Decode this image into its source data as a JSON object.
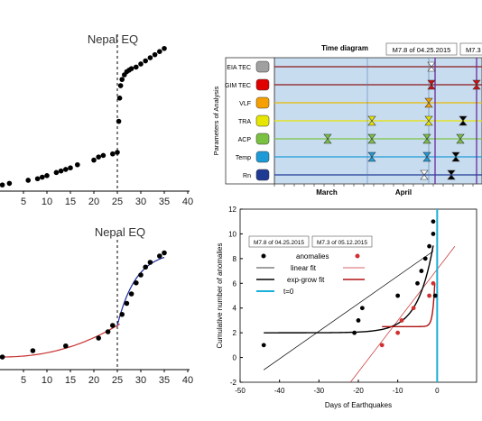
{
  "chart_data": [
    {
      "type": "scatter",
      "title": "Nepal EQ",
      "xlim": [
        0,
        40
      ],
      "x_ticks": [
        "5",
        "10",
        "15",
        "20",
        "25",
        "30",
        "35",
        "40"
      ],
      "event_line_x": 25,
      "series": [
        {
          "points": [
            [
              0.5,
              0.04
            ],
            [
              2,
              0.05
            ],
            [
              6,
              0.07
            ],
            [
              8,
              0.08
            ],
            [
              9,
              0.09
            ],
            [
              10,
              0.1
            ],
            [
              12,
              0.12
            ],
            [
              13,
              0.13
            ],
            [
              14,
              0.14
            ],
            [
              15,
              0.15
            ],
            [
              16.5,
              0.17
            ],
            [
              20,
              0.2
            ],
            [
              21,
              0.22
            ],
            [
              22,
              0.23
            ],
            [
              24,
              0.24
            ],
            [
              25,
              0.25
            ],
            [
              25.3,
              0.45
            ],
            [
              25.5,
              0.6
            ],
            [
              25.7,
              0.68
            ],
            [
              26,
              0.72
            ],
            [
              26.5,
              0.75
            ],
            [
              27,
              0.77
            ],
            [
              27.5,
              0.78
            ],
            [
              28,
              0.79
            ],
            [
              29,
              0.8
            ],
            [
              30,
              0.82
            ],
            [
              31,
              0.84
            ],
            [
              32,
              0.86
            ],
            [
              33,
              0.88
            ],
            [
              34,
              0.9
            ],
            [
              35,
              0.92
            ]
          ]
        }
      ]
    },
    {
      "type": "line",
      "title": "Time diagram",
      "ylabel": "Parameters of Analysis",
      "rows": [
        "EIA TEC",
        "GIM TEC",
        "VLF",
        "TRA",
        "ACP",
        "Temp",
        "Rn"
      ],
      "row_colors": [
        "#8c1a1a",
        "#8c1a1a",
        "#e6b800",
        "#e6e600",
        "#7ac142",
        "#1e9bd7",
        "#1f3a93"
      ],
      "icon_colors": [
        "#a0a0a0",
        "#e00000",
        "#f5a000",
        "#e6e600",
        "#7ac142",
        "#1e9bd7",
        "#1f3a93"
      ],
      "months": [
        "March",
        "April"
      ],
      "event_labels": [
        "M7.8 of 04.25.2015",
        "M7.3"
      ],
      "background": "#c8dcf0"
    },
    {
      "type": "line",
      "title": "Nepal EQ",
      "xlim": [
        0,
        40
      ],
      "x_ticks": [
        "5",
        "10",
        "15",
        "20",
        "25",
        "30",
        "35",
        "40"
      ],
      "event_line_x": 25,
      "series": [
        {
          "points": [
            [
              0.5,
              0.08
            ],
            [
              7,
              0.12
            ],
            [
              14,
              0.15
            ],
            [
              21,
              0.2
            ],
            [
              23,
              0.24
            ],
            [
              24,
              0.28
            ],
            [
              26,
              0.35
            ],
            [
              27,
              0.42
            ],
            [
              28,
              0.48
            ],
            [
              29,
              0.55
            ],
            [
              30,
              0.6
            ],
            [
              31,
              0.65
            ],
            [
              32,
              0.68
            ],
            [
              34,
              0.72
            ],
            [
              35,
              0.74
            ]
          ]
        }
      ]
    },
    {
      "type": "scatter",
      "xlabel": "Days of Earthquakes",
      "ylabel": "Cumulative number of anomalies",
      "xlim": [
        -50,
        0
      ],
      "ylim": [
        -2,
        12
      ],
      "x_ticks": [
        -50,
        -40,
        -30,
        -20,
        -10,
        0
      ],
      "y_ticks": [
        -2,
        0,
        2,
        4,
        6,
        8,
        10,
        12
      ],
      "event_labels": [
        "M7.8 of 04.25.2015",
        "M7.3 of 05.12.2015"
      ],
      "legend": [
        "anomalies",
        "linear  fit",
        "exp-grow fit",
        "t=0"
      ],
      "series": [
        {
          "color": "#000000",
          "points": [
            [
              -44,
              1
            ],
            [
              -21,
              2
            ],
            [
              -20,
              3
            ],
            [
              -19,
              4
            ],
            [
              -10,
              5
            ],
            [
              -5,
              6
            ],
            [
              -4,
              7
            ],
            [
              -3,
              8
            ],
            [
              -2,
              9
            ],
            [
              -1,
              10
            ],
            [
              -1,
              11
            ],
            [
              -0.5,
              5
            ]
          ]
        },
        {
          "color": "#d03030",
          "points": [
            [
              -14,
              1
            ],
            [
              -10,
              2
            ],
            [
              -9,
              3
            ],
            [
              -6,
              4
            ],
            [
              -2,
              5
            ],
            [
              -1,
              6
            ]
          ]
        }
      ]
    }
  ]
}
